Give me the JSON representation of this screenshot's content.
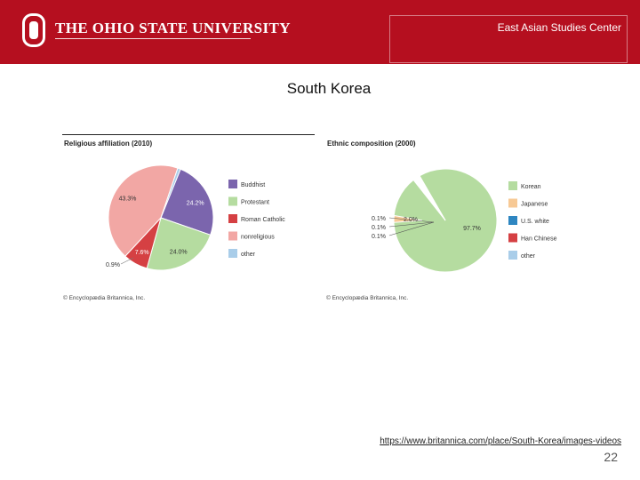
{
  "header": {
    "university": "The Ohio State University",
    "center_name": "East Asian Studies Center"
  },
  "slide": {
    "title": "South Korea",
    "source_url": "https://www.britannica.com/place/South-Korea/images-videos",
    "page_number": "22"
  },
  "chart_data": [
    {
      "type": "pie",
      "title": "Religious affiliation (2010)",
      "slices": [
        {
          "label": "Buddhist",
          "value": 24.2,
          "color": "#7b65ad",
          "value_label": "24.2%"
        },
        {
          "label": "Protestant",
          "value": 24.0,
          "color": "#b5dca0",
          "value_label": "24.0%"
        },
        {
          "label": "Roman Catholic",
          "value": 7.6,
          "color": "#d54043",
          "value_label": "7.6%"
        },
        {
          "label": "nonreligious",
          "value": 43.3,
          "color": "#f2a7a4",
          "value_label": "43.3%"
        },
        {
          "label": "other",
          "value": 0.9,
          "color": "#a9cde9",
          "value_label": "0.9%"
        }
      ],
      "legend": [
        "Buddhist",
        "Protestant",
        "Roman Catholic",
        "nonreligious",
        "other"
      ],
      "legend_position": "right",
      "credit": "© Encyclopædia Britannica, Inc."
    },
    {
      "type": "pie",
      "title": "Ethnic composition (2000)",
      "slices": [
        {
          "label": "Korean",
          "value": 97.7,
          "color": "#b5dca0",
          "value_label": "97.7%"
        },
        {
          "label": "Japanese",
          "value": 2.0,
          "color": "#f7c995",
          "value_label": "2.0%"
        },
        {
          "label": "U.S. white",
          "value": 0.1,
          "color": "#2e86c1",
          "value_label": "0.1%"
        },
        {
          "label": "Han Chinese",
          "value": 0.1,
          "color": "#d54043",
          "value_label": "0.1%"
        },
        {
          "label": "other",
          "value": 0.1,
          "color": "#a9cde9",
          "value_label": "0.1%"
        }
      ],
      "legend": [
        "Korean",
        "Japanese",
        "U.S. white",
        "Han Chinese",
        "other"
      ],
      "legend_position": "right",
      "credit": "© Encyclopædia Britannica, Inc."
    }
  ]
}
